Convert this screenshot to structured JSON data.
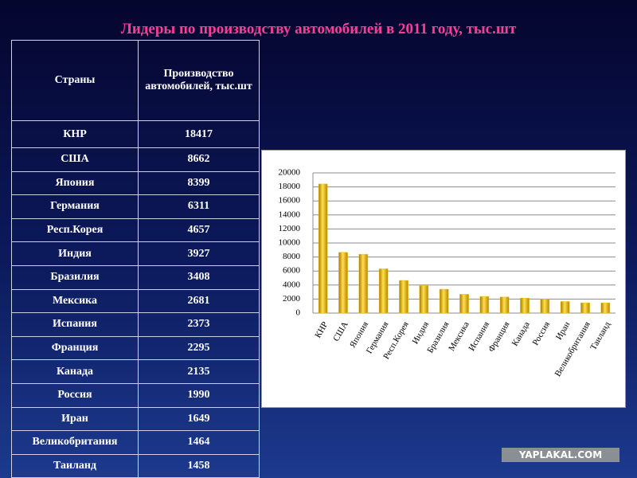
{
  "title": "Лидеры по производству автомобилей в 2011 году, тыс.шт",
  "table": {
    "header": [
      "Страны",
      "Производство автомобилей, тыс.шт"
    ],
    "rows": [
      [
        "КНР",
        "18417"
      ],
      [
        "США",
        "8662"
      ],
      [
        "Япония",
        "8399"
      ],
      [
        "Германия",
        "6311"
      ],
      [
        "Респ.Корея",
        "4657"
      ],
      [
        "Индия",
        "3927"
      ],
      [
        "Бразилия",
        "3408"
      ],
      [
        "Мексика",
        "2681"
      ],
      [
        "Испания",
        "2373"
      ],
      [
        "Франция",
        "2295"
      ],
      [
        "Канада",
        "2135"
      ],
      [
        "Россия",
        "1990"
      ],
      [
        "Иран",
        "1649"
      ],
      [
        "Великобритания",
        "1464"
      ],
      [
        "Таиланд",
        "1458"
      ]
    ]
  },
  "chart_data": {
    "type": "bar",
    "categories": [
      "КНР",
      "США",
      "Япония",
      "Германия",
      "Респ.Корея",
      "Индия",
      "Бразилия",
      "Мексика",
      "Испания",
      "Франция",
      "Канада",
      "Россия",
      "Иран",
      "Великобритания",
      "Таиланд"
    ],
    "values": [
      18417,
      8662,
      8399,
      6311,
      4657,
      3927,
      3408,
      2681,
      2373,
      2295,
      2135,
      1990,
      1649,
      1464,
      1458
    ],
    "color": "#f2c012",
    "ylim": [
      0,
      20000
    ],
    "yticks": [
      0,
      2000,
      4000,
      6000,
      8000,
      10000,
      12000,
      14000,
      16000,
      18000,
      20000
    ],
    "grid": true
  },
  "watermark": "YAPLAKAL.COM"
}
